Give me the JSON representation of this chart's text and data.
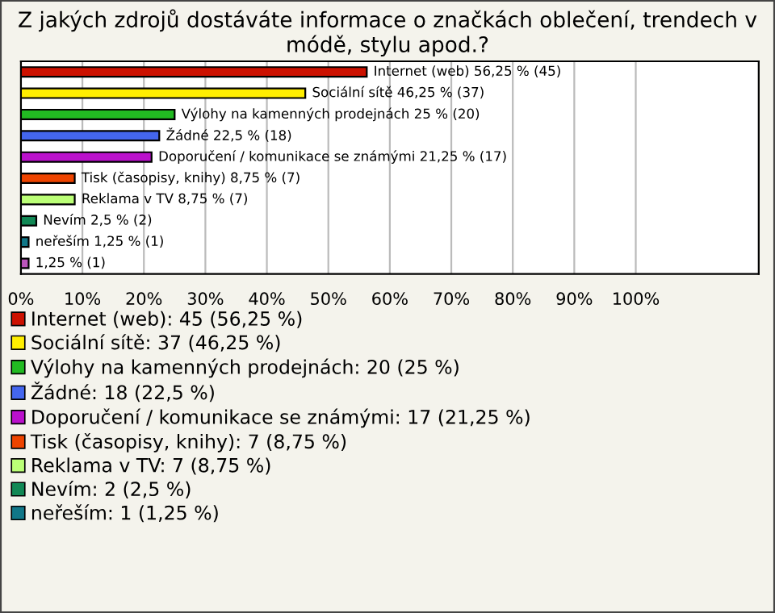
{
  "chart_data": {
    "type": "bar",
    "orientation": "horizontal",
    "title": "Z jakých zdrojů dostáváte informace o značkách oblečení, trendech v módě, stylu apod.?",
    "categories": [
      null,
      null,
      null,
      null,
      null,
      null,
      null,
      null,
      null,
      null
    ],
    "series": [
      {
        "name": "Internet (web): 45 (56,25 %)",
        "color": "#cc1100",
        "values": [
          56.25,
          null,
          null,
          null,
          null,
          null,
          null,
          null,
          null,
          null
        ],
        "value_labels": [
          "Internet (web) 56,25 % (45)",
          null,
          null,
          null,
          null,
          null,
          null,
          null,
          null,
          null
        ]
      },
      {
        "name": "Sociální sítě: 37 (46,25 %)",
        "color": "#ffee00",
        "values": [
          null,
          46.25,
          null,
          null,
          null,
          null,
          null,
          null,
          null,
          null
        ],
        "value_labels": [
          null,
          "Sociální sítě 46,25 % (37)",
          null,
          null,
          null,
          null,
          null,
          null,
          null,
          null
        ]
      },
      {
        "name": "Výlohy na kamenných prodejnách: 20 (25 %)",
        "color": "#22bb22",
        "values": [
          null,
          null,
          25,
          null,
          null,
          null,
          null,
          null,
          null,
          null
        ],
        "value_labels": [
          null,
          null,
          "Výlohy na kamenných prodejnách 25 % (20)",
          null,
          null,
          null,
          null,
          null,
          null,
          null
        ]
      },
      {
        "name": "Žádné: 18 (22,5 %)",
        "color": "#4466ee",
        "values": [
          null,
          null,
          null,
          22.5,
          null,
          null,
          null,
          null,
          null,
          null
        ],
        "value_labels": [
          null,
          null,
          null,
          "Žádné 22,5 % (18)",
          null,
          null,
          null,
          null,
          null,
          null
        ]
      },
      {
        "name": "Doporučení / komunikace se známými: 17 (21,25 %)",
        "color": "#bb11cc",
        "values": [
          null,
          null,
          null,
          null,
          21.25,
          null,
          null,
          null,
          null,
          null
        ],
        "value_labels": [
          null,
          null,
          null,
          null,
          "Doporučení / komunikace se známými 21,25 % (17)",
          null,
          null,
          null,
          null,
          null
        ]
      },
      {
        "name": "Tisk (časopisy, knihy): 7 (8,75 %)",
        "color": "#ee4400",
        "values": [
          null,
          null,
          null,
          null,
          null,
          8.75,
          null,
          null,
          null,
          null
        ],
        "value_labels": [
          null,
          null,
          null,
          null,
          null,
          "Tisk (časopisy, knihy) 8,75 % (7)",
          null,
          null,
          null,
          null
        ]
      },
      {
        "name": "Reklama v TV: 7 (8,75 %)",
        "color": "#bbff77",
        "values": [
          null,
          null,
          null,
          null,
          null,
          null,
          8.75,
          null,
          null,
          null
        ],
        "value_labels": [
          null,
          null,
          null,
          null,
          null,
          null,
          "Reklama v TV 8,75 % (7)",
          null,
          null,
          null
        ]
      },
      {
        "name": "Nevím: 2 (2,5 %)",
        "color": "#118855",
        "values": [
          null,
          null,
          null,
          null,
          null,
          null,
          null,
          2.5,
          null,
          null
        ],
        "value_labels": [
          null,
          null,
          null,
          null,
          null,
          null,
          null,
          "Nevím 2,5 % (2)",
          null,
          null
        ]
      },
      {
        "name": "neřeším: 1 (1,25 %)",
        "color": "#117788",
        "values": [
          null,
          null,
          null,
          null,
          null,
          null,
          null,
          null,
          1.25,
          null
        ],
        "value_labels": [
          null,
          null,
          null,
          null,
          null,
          null,
          null,
          null,
          "neřeším 1,25 % (1)",
          null
        ]
      },
      {
        "color": "#bb55bb",
        "values": [
          null,
          null,
          null,
          null,
          null,
          null,
          null,
          null,
          null,
          1.25
        ],
        "value_labels": [
          null,
          null,
          null,
          null,
          null,
          null,
          null,
          null,
          null,
          "1,25 % (1)"
        ]
      }
    ],
    "xlim": [
      0,
      120
    ],
    "xticks": [
      {
        "value": 0,
        "label": "0%"
      },
      {
        "value": 10,
        "label": "10%"
      },
      {
        "value": 20,
        "label": "20%"
      },
      {
        "value": 30,
        "label": "30%"
      },
      {
        "value": 40,
        "label": "40%"
      },
      {
        "value": 50,
        "label": "50%"
      },
      {
        "value": 60,
        "label": "60%"
      },
      {
        "value": 70,
        "label": "70%"
      },
      {
        "value": 80,
        "label": "80%"
      },
      {
        "value": 90,
        "label": "90%"
      },
      {
        "value": 100,
        "label": "100%"
      }
    ],
    "grid": "x",
    "legend": "bottom"
  }
}
